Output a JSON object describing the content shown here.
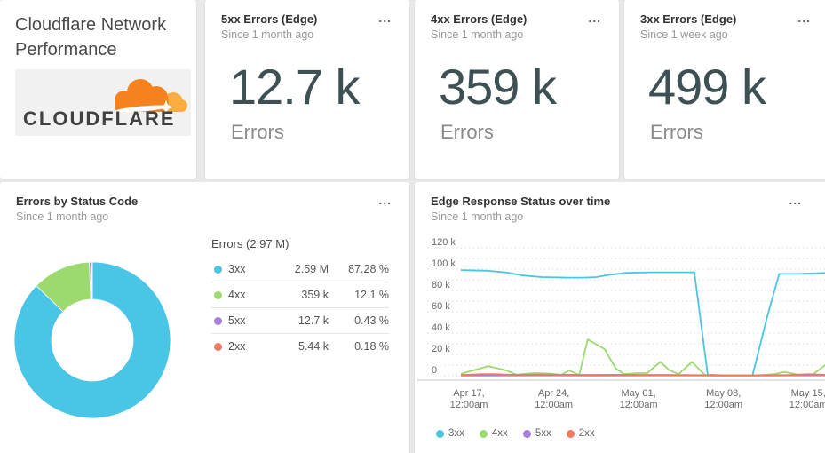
{
  "icons": {
    "menu": "..."
  },
  "title_card": {
    "title": "Cloudflare Network Performance",
    "logo_text": "CLOUDFLARE"
  },
  "stat_cards": [
    {
      "title": "5xx Errors (Edge)",
      "subtitle": "Since 1 month ago",
      "value": "12.7 k",
      "label": "Errors"
    },
    {
      "title": "4xx Errors (Edge)",
      "subtitle": "Since 1 month ago",
      "value": "359 k",
      "label": "Errors"
    },
    {
      "title": "3xx Errors (Edge)",
      "subtitle": "Since 1 week ago",
      "value": "499 k",
      "label": "Errors"
    }
  ],
  "donut_card": {
    "title": "Errors by Status Code",
    "subtitle": "Since 1 month ago"
  },
  "line_card": {
    "title": "Edge Response Status over time",
    "subtitle": "Since 1 month ago"
  },
  "colors": {
    "cyan": "#49c5e5",
    "green": "#9cd96f",
    "purple": "#a87fd8",
    "salmon": "#f0795e",
    "grid": "#d9d9d9",
    "axis": "#d4d4d4",
    "axis_text": "#696969"
  },
  "chart_data": [
    {
      "type": "pie",
      "title": "Errors by Status Code",
      "subtitle": "Since 1 month ago",
      "total_label": "Errors (2.97 M)",
      "donut": true,
      "slices": [
        {
          "name": "3xx",
          "value": 2590000,
          "value_label": "2.59 M",
          "pct": 87.28,
          "pct_label": "87.28 %",
          "color": "#49c5e5"
        },
        {
          "name": "4xx",
          "value": 359000,
          "value_label": "359 k",
          "pct": 12.1,
          "pct_label": "12.1 %",
          "color": "#9cd96f"
        },
        {
          "name": "5xx",
          "value": 12700,
          "value_label": "12.7 k",
          "pct": 0.43,
          "pct_label": "0.43 %",
          "color": "#a87fd8"
        },
        {
          "name": "2xx",
          "value": 5440,
          "value_label": "5.44 k",
          "pct": 0.18,
          "pct_label": "0.18 %",
          "color": "#f0795e"
        }
      ]
    },
    {
      "type": "line",
      "title": "Edge Response Status over time",
      "subtitle": "Since 1 month ago",
      "unit": "k",
      "ylim": [
        0,
        120
      ],
      "grid_step": 10,
      "y_ticks": [
        {
          "v": 0,
          "label": "0"
        },
        {
          "v": 20,
          "label": "20 k"
        },
        {
          "v": 40,
          "label": "40 k"
        },
        {
          "v": 60,
          "label": "60 k"
        },
        {
          "v": 80,
          "label": "80 k"
        },
        {
          "v": 100,
          "label": "100 k"
        },
        {
          "v": 120,
          "label": "120 k"
        }
      ],
      "x_ticks": [
        {
          "d": 0,
          "line1": "Apr 17,",
          "line2": "12:00am"
        },
        {
          "d": 7,
          "line1": "Apr 24,",
          "line2": "12:00am"
        },
        {
          "d": 14,
          "line1": "May 01,",
          "line2": "12:00am"
        },
        {
          "d": 21,
          "line1": "May 08,",
          "line2": "12:00am"
        },
        {
          "d": 28,
          "line1": "May 15,",
          "line2": "12:00am"
        }
      ],
      "series": [
        {
          "name": "3xx",
          "color": "#49c5e5",
          "points": [
            [
              -0.6,
              99
            ],
            [
              1.5,
              98.5
            ],
            [
              3,
              97
            ],
            [
              4.5,
              94
            ],
            [
              6,
              92.5
            ],
            [
              8,
              92
            ],
            [
              9.5,
              92
            ],
            [
              10.5,
              92.5
            ],
            [
              11.5,
              94.5
            ],
            [
              13,
              96.5
            ],
            [
              15,
              97
            ],
            [
              17,
              97
            ],
            [
              18.6,
              97
            ],
            [
              19.7,
              1
            ],
            [
              21,
              0.4
            ],
            [
              23.4,
              0.4
            ],
            [
              24.6,
              55
            ],
            [
              25.6,
              95.5
            ],
            [
              27,
              95.5
            ],
            [
              28.5,
              96
            ],
            [
              29.5,
              96.5
            ]
          ]
        },
        {
          "name": "4xx",
          "color": "#9cd96f",
          "points": [
            [
              -0.6,
              2
            ],
            [
              1.6,
              9
            ],
            [
              3.1,
              5
            ],
            [
              3.9,
              1
            ],
            [
              5.4,
              2.5
            ],
            [
              6.8,
              2
            ],
            [
              7.6,
              0.7
            ],
            [
              8.3,
              5
            ],
            [
              9.1,
              0.7
            ],
            [
              9.8,
              34
            ],
            [
              11.2,
              25
            ],
            [
              12.1,
              7
            ],
            [
              12.8,
              1.5
            ],
            [
              13.9,
              2.5
            ],
            [
              14.7,
              2.5
            ],
            [
              15.8,
              13
            ],
            [
              16.5,
              5.5
            ],
            [
              17.3,
              1.5
            ],
            [
              18.4,
              13
            ],
            [
              19.5,
              0.3
            ],
            [
              21,
              0.2
            ],
            [
              23.4,
              0.2
            ],
            [
              25.2,
              1.5
            ],
            [
              26,
              3.5
            ],
            [
              27.2,
              1
            ],
            [
              28.3,
              0.6
            ],
            [
              29.5,
              11
            ]
          ]
        },
        {
          "name": "5xx",
          "color": "#a87fd8",
          "points": [
            [
              -0.6,
              0.2
            ],
            [
              5,
              0.25
            ],
            [
              10,
              0.2
            ],
            [
              15,
              0.25
            ],
            [
              20,
              0.15
            ],
            [
              25,
              0.2
            ],
            [
              29.5,
              0.25
            ]
          ]
        },
        {
          "name": "2xx",
          "color": "#f0795e",
          "points": [
            [
              -0.6,
              0.7
            ],
            [
              1,
              1.4
            ],
            [
              2,
              1.6
            ],
            [
              3.5,
              0.9
            ],
            [
              5,
              1
            ],
            [
              6.5,
              1.2
            ],
            [
              8,
              0.9
            ],
            [
              10,
              0.8
            ],
            [
              12,
              0.9
            ],
            [
              14,
              0.8
            ],
            [
              16,
              0.8
            ],
            [
              18,
              0.7
            ],
            [
              19.5,
              0.5
            ],
            [
              21,
              0.3
            ],
            [
              23.4,
              0.3
            ],
            [
              25,
              0.5
            ],
            [
              26.5,
              0.7
            ],
            [
              28,
              1.4
            ],
            [
              29,
              1
            ],
            [
              29.5,
              0.9
            ]
          ]
        }
      ]
    }
  ]
}
